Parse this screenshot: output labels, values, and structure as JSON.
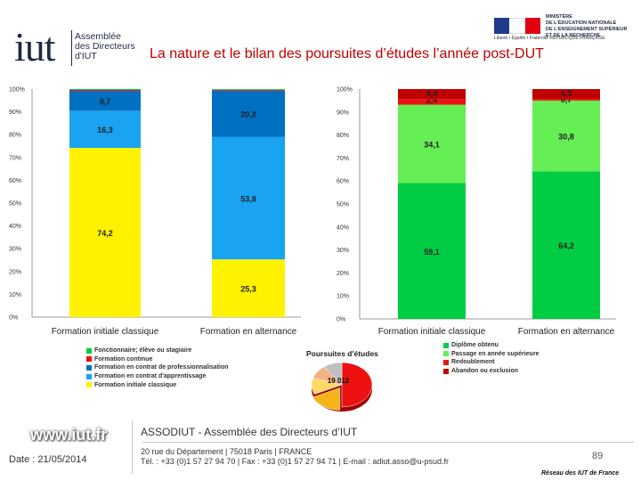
{
  "header": {
    "logo_mark": "iut",
    "logo_lines": [
      "Assemblée",
      "des Directeurs",
      "d'IUT"
    ],
    "ministry_lines": [
      "MINISTÈRE",
      "DE L'ÉDUCATION NATIONALE",
      "DE L'ENSEIGNEMENT SUPÉRIEUR",
      "ET DE LA RECHERCHE"
    ],
    "ministry_motto": "Liberté • Égalité • Fraternité   RÉPUBLIQUE FRANÇAISE",
    "title": "La nature et le bilan des poursuites d’études l’année post-DUT"
  },
  "colors": {
    "yellow": "#fff200",
    "lightblue": "#1aa3f0",
    "midblue": "#0070c0",
    "lightgreen": "#66ee55",
    "darkgreen": "#00cc44",
    "red": "#ee1111",
    "darkred": "#c00000",
    "title": "#c00000"
  },
  "chart_data": [
    {
      "type": "bar",
      "stacked": true,
      "categories": [
        "Formation initiale classique",
        "Formation en alternance"
      ],
      "ylim": [
        0,
        100
      ],
      "y_ticks": [
        "0%",
        "10%",
        "20%",
        "30%",
        "40%",
        "50%",
        "60%",
        "70%",
        "80%",
        "90%",
        "100%"
      ],
      "series": [
        {
          "name": "Formation initiale classique",
          "values": [
            74.2,
            25.3
          ],
          "labels": [
            "74,2",
            "25,3"
          ],
          "color": "#fff200"
        },
        {
          "name": "Formation en contrat d'apprentissage",
          "values": [
            16.3,
            53.8
          ],
          "labels": [
            "16,3",
            "53,8"
          ],
          "color": "#1aa3f0"
        },
        {
          "name": "Formation en contrat de professionnalisation",
          "values": [
            8.7,
            20.2
          ],
          "labels": [
            "8,7",
            "20,2"
          ],
          "color": "#0070c0"
        },
        {
          "name": "Formation continue",
          "values": [
            0.4,
            0.4
          ],
          "labels": [
            "",
            ""
          ],
          "color": "#ee1111"
        },
        {
          "name": "Fonctionnaire; élève ou stagiaire",
          "values": [
            0.4,
            0.3
          ],
          "labels": [
            "",
            ""
          ],
          "color": "#00cc44"
        }
      ],
      "legend": [
        "Fonctionnaire; élève ou stagiaire",
        "Formation continue",
        "Formation en contrat de professionnalisation",
        "Formation en contrat d'apprentissage",
        "Formation initiale classique"
      ]
    },
    {
      "type": "bar",
      "stacked": true,
      "categories": [
        "Formation initiale classique",
        "Formation en alternance"
      ],
      "ylim": [
        0,
        100
      ],
      "y_ticks": [
        "0%",
        "10%",
        "20%",
        "30%",
        "40%",
        "50%",
        "60%",
        "70%",
        "80%",
        "90%",
        "100%"
      ],
      "series": [
        {
          "name": "Diplôme obtenu",
          "values": [
            59.1,
            64.2
          ],
          "labels": [
            "59,1",
            "64,2"
          ],
          "color": "#00cc44"
        },
        {
          "name": "Passage en année supérieure",
          "values": [
            34.1,
            30.8
          ],
          "labels": [
            "34,1",
            "30,8"
          ],
          "color": "#66ee55"
        },
        {
          "name": "Redoublement",
          "values": [
            2.4,
            0.7
          ],
          "labels": [
            "2,4",
            "0,7"
          ],
          "color": "#ee1111"
        },
        {
          "name": "Abandon ou exclusion",
          "values": [
            4.4,
            4.3
          ],
          "labels": [
            "4,4",
            "4,3"
          ],
          "color": "#c00000"
        }
      ],
      "legend": [
        "Diplôme obtenu",
        "Passage en année supérieure",
        "Redoublement",
        "Abandon ou exclusion"
      ]
    },
    {
      "type": "pie",
      "title": "Poursuites d'études",
      "center_label": "19 012",
      "values": [
        50,
        18,
        12,
        10,
        10
      ],
      "colors": [
        "#ee1111",
        "#f5b418",
        "#ffd966",
        "#f4b183",
        "#bfbfbf"
      ]
    }
  ],
  "footer": {
    "url": "www.iut.fr",
    "date": "Date : 21/05/2014",
    "association": "ASSODIUT - Assemblée des Directeurs d’IUT",
    "address_line1": "20 rue du Département | 75018 Paris | FRANCE",
    "address_line2": "Tél. : +33 (0)1 57 27 94 70 | Fax : +33 (0)1 57 27 94 71 | E-mail : adiut.asso@u-psud.fr",
    "page": "89",
    "network": "Réseau des IUT de France"
  }
}
